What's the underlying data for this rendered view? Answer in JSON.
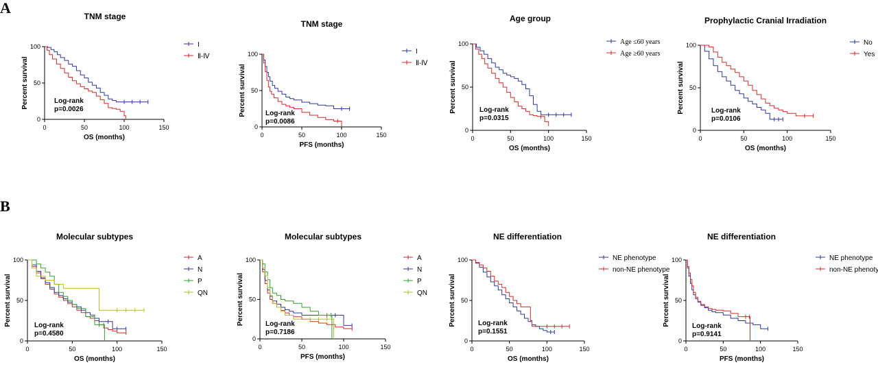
{
  "panel_labels": [
    "A",
    "B"
  ],
  "chart_data": [
    {
      "type": "line",
      "title": "TNM stage",
      "xlabel": "OS (months)",
      "ylabel": "Percent survival",
      "xlim": [
        0,
        150
      ],
      "ylim": [
        0,
        100
      ],
      "xticks": [
        0,
        50,
        100,
        150
      ],
      "yticks": [
        0,
        50,
        100
      ],
      "annotation": [
        "Log-rank",
        "p=0.0026"
      ],
      "legend_position": "right",
      "series": [
        {
          "name": "I",
          "color": "#2b35a0",
          "x": [
            0,
            4,
            8,
            12,
            16,
            20,
            25,
            30,
            35,
            40,
            45,
            50,
            55,
            60,
            65,
            70,
            75,
            80,
            85,
            90,
            95,
            100,
            110,
            120,
            130
          ],
          "y": [
            100,
            99,
            96,
            93,
            89,
            85,
            81,
            76,
            73,
            67,
            61,
            57,
            51,
            47,
            43,
            37,
            33,
            28,
            26,
            24,
            24,
            24,
            24,
            24,
            24
          ]
        },
        {
          "name": "Ⅱ-Ⅳ",
          "color": "#d62728",
          "x": [
            0,
            3,
            6,
            10,
            15,
            20,
            25,
            30,
            35,
            40,
            45,
            50,
            55,
            60,
            65,
            70,
            75,
            80,
            85,
            90,
            95,
            100,
            102
          ],
          "y": [
            100,
            95,
            89,
            83,
            76,
            70,
            64,
            58,
            53,
            49,
            45,
            42,
            39,
            37,
            32,
            27,
            22,
            16,
            15,
            14,
            11,
            5,
            0
          ]
        }
      ]
    },
    {
      "type": "line",
      "title": "TNM stage",
      "xlabel": "PFS (months)",
      "ylabel": "Percent survival",
      "xlim": [
        0,
        150
      ],
      "ylim": [
        0,
        100
      ],
      "xticks": [
        0,
        50,
        100,
        150
      ],
      "yticks": [
        0,
        50,
        100
      ],
      "annotation": [
        "Log-rank",
        "p=0.0086"
      ],
      "legend_position": "right",
      "series": [
        {
          "name": "I",
          "color": "#2b35a0",
          "x": [
            0,
            2,
            4,
            6,
            8,
            10,
            13,
            16,
            20,
            25,
            30,
            35,
            40,
            50,
            60,
            70,
            80,
            90,
            100,
            110
          ],
          "y": [
            100,
            92,
            83,
            75,
            69,
            63,
            57,
            53,
            49,
            45,
            41,
            39,
            37,
            34,
            32,
            30,
            29,
            25,
            25,
            25
          ]
        },
        {
          "name": "Ⅱ-Ⅳ",
          "color": "#d62728",
          "x": [
            0,
            2,
            4,
            6,
            8,
            10,
            12,
            15,
            20,
            25,
            30,
            35,
            40,
            50,
            60,
            70,
            80,
            90,
            95,
            100
          ],
          "y": [
            100,
            88,
            76,
            64,
            55,
            49,
            45,
            40,
            35,
            31,
            29,
            27,
            25,
            20,
            16,
            13,
            10,
            8,
            8,
            0
          ]
        }
      ]
    },
    {
      "type": "line",
      "title": "Age group",
      "xlabel": "OS (months)",
      "ylabel": "Percent survival",
      "xlim": [
        0,
        150
      ],
      "ylim": [
        0,
        100
      ],
      "xticks": [
        0,
        50,
        100,
        150
      ],
      "yticks": [
        0,
        50,
        100
      ],
      "annotation": [
        "Log-rank",
        "p=0.0315"
      ],
      "legend_position": "right",
      "series": [
        {
          "name": "Age ≤60 years",
          "color": "#2b35a0",
          "x": [
            0,
            5,
            10,
            15,
            20,
            25,
            30,
            35,
            40,
            45,
            50,
            55,
            60,
            65,
            70,
            75,
            80,
            85,
            90,
            100,
            110,
            120,
            130
          ],
          "y": [
            100,
            96,
            92,
            88,
            83,
            78,
            73,
            70,
            66,
            64,
            62,
            60,
            57,
            53,
            48,
            40,
            30,
            22,
            18,
            18,
            18,
            18,
            18
          ]
        },
        {
          "name": "Age ≥60 years",
          "color": "#d62728",
          "x": [
            0,
            4,
            8,
            12,
            16,
            20,
            25,
            30,
            35,
            40,
            45,
            50,
            55,
            60,
            65,
            70,
            75,
            80,
            85,
            90,
            95,
            100
          ],
          "y": [
            100,
            94,
            88,
            83,
            77,
            72,
            66,
            60,
            55,
            50,
            44,
            38,
            33,
            28,
            25,
            22,
            18,
            17,
            16,
            16,
            10,
            5
          ]
        }
      ]
    },
    {
      "type": "line",
      "title": "Prophylactic Cranial Irradiation",
      "xlabel": "OS (months)",
      "ylabel": "Percent survival",
      "xlim": [
        0,
        150
      ],
      "ylim": [
        0,
        100
      ],
      "xticks": [
        0,
        50,
        100,
        150
      ],
      "yticks": [
        0,
        50,
        100
      ],
      "annotation": [
        "Log-rank",
        "p=0.0106"
      ],
      "legend_position": "right",
      "series": [
        {
          "name": "No",
          "color": "#2b35a0",
          "x": [
            0,
            5,
            10,
            15,
            20,
            25,
            30,
            35,
            40,
            45,
            50,
            55,
            60,
            65,
            70,
            75,
            80,
            85,
            90,
            95
          ],
          "y": [
            100,
            93,
            84,
            76,
            69,
            63,
            58,
            53,
            47,
            43,
            38,
            34,
            31,
            27,
            24,
            20,
            13,
            13,
            13,
            13
          ]
        },
        {
          "name": "Yes",
          "color": "#d62728",
          "x": [
            0,
            5,
            10,
            15,
            20,
            25,
            30,
            35,
            40,
            45,
            50,
            55,
            60,
            65,
            70,
            75,
            80,
            85,
            90,
            95,
            100,
            110,
            120,
            130
          ],
          "y": [
            100,
            100,
            98,
            92,
            86,
            80,
            76,
            72,
            68,
            63,
            58,
            53,
            47,
            42,
            37,
            32,
            29,
            26,
            24,
            22,
            20,
            17,
            17,
            17
          ]
        }
      ]
    },
    {
      "type": "line",
      "title": "Molecular subtypes",
      "xlabel": "OS (months)",
      "ylabel": "Percent survival",
      "xlim": [
        0,
        150
      ],
      "ylim": [
        0,
        100
      ],
      "xticks": [
        0,
        50,
        100,
        150
      ],
      "yticks": [
        0,
        50,
        100
      ],
      "annotation": [
        "Log-rank",
        "p=0.4580"
      ],
      "legend_position": "right",
      "series": [
        {
          "name": "A",
          "color": "#d62728",
          "x": [
            0,
            5,
            10,
            15,
            20,
            25,
            30,
            35,
            40,
            45,
            50,
            55,
            60,
            65,
            70,
            75,
            80,
            85,
            90,
            95,
            100,
            110
          ],
          "y": [
            100,
            92,
            84,
            77,
            70,
            64,
            58,
            54,
            50,
            46,
            42,
            38,
            35,
            30,
            28,
            25,
            20,
            16,
            14,
            12,
            10,
            10
          ]
        },
        {
          "name": "N",
          "color": "#2b35a0",
          "x": [
            0,
            5,
            10,
            15,
            20,
            25,
            30,
            35,
            40,
            45,
            50,
            55,
            60,
            65,
            70,
            75,
            80,
            85,
            90,
            95,
            100,
            110
          ],
          "y": [
            100,
            94,
            86,
            78,
            72,
            66,
            60,
            56,
            52,
            48,
            45,
            42,
            38,
            35,
            32,
            28,
            24,
            24,
            24,
            15,
            15,
            15
          ]
        },
        {
          "name": "P",
          "color": "#2ca02c",
          "x": [
            0,
            5,
            10,
            15,
            20,
            25,
            30,
            35,
            40,
            45,
            50,
            55,
            60,
            65,
            70,
            75,
            80,
            85,
            86
          ],
          "y": [
            100,
            100,
            95,
            90,
            85,
            80,
            70,
            60,
            55,
            50,
            45,
            40,
            40,
            30,
            30,
            20,
            20,
            20,
            0
          ]
        },
        {
          "name": "QN",
          "color": "#b5bd1f",
          "x": [
            0,
            5,
            10,
            20,
            30,
            40,
            50,
            60,
            70,
            80,
            90,
            100,
            110,
            120,
            130
          ],
          "y": [
            100,
            90,
            80,
            75,
            70,
            65,
            65,
            65,
            65,
            38,
            38,
            38,
            38,
            38,
            38
          ]
        }
      ]
    },
    {
      "type": "line",
      "title": "Molecular subtypes",
      "xlabel": "PFS (months)",
      "ylabel": "Percent survival",
      "xlim": [
        0,
        150
      ],
      "ylim": [
        0,
        100
      ],
      "xticks": [
        0,
        50,
        100,
        150
      ],
      "yticks": [
        0,
        50,
        100
      ],
      "annotation": [
        "Log-rank",
        "p=0.7186"
      ],
      "legend_position": "right",
      "series": [
        {
          "name": "A",
          "color": "#d62728",
          "x": [
            0,
            3,
            6,
            9,
            12,
            15,
            20,
            25,
            30,
            35,
            40,
            50,
            60,
            70,
            80,
            90,
            100,
            110
          ],
          "y": [
            100,
            85,
            70,
            58,
            50,
            45,
            40,
            36,
            33,
            30,
            28,
            25,
            22,
            20,
            18,
            15,
            13,
            13
          ]
        },
        {
          "name": "N",
          "color": "#2b35a0",
          "x": [
            0,
            3,
            6,
            9,
            12,
            15,
            20,
            25,
            30,
            35,
            40,
            50,
            60,
            70,
            80,
            90,
            100,
            110
          ],
          "y": [
            100,
            88,
            74,
            62,
            54,
            48,
            44,
            40,
            37,
            35,
            33,
            30,
            30,
            30,
            30,
            30,
            17,
            17
          ]
        },
        {
          "name": "P",
          "color": "#2ca02c",
          "x": [
            0,
            3,
            6,
            9,
            12,
            15,
            20,
            25,
            30,
            40,
            50,
            60,
            70,
            80,
            85,
            86
          ],
          "y": [
            100,
            95,
            85,
            75,
            65,
            58,
            55,
            50,
            48,
            45,
            40,
            35,
            30,
            30,
            30,
            0
          ]
        },
        {
          "name": "QN",
          "color": "#b5bd1f",
          "x": [
            0,
            3,
            6,
            9,
            12,
            15,
            20,
            25,
            30,
            40,
            50,
            60,
            70,
            80,
            88
          ],
          "y": [
            100,
            90,
            80,
            65,
            55,
            45,
            40,
            35,
            30,
            25,
            25,
            25,
            25,
            25,
            0
          ]
        }
      ]
    },
    {
      "type": "line",
      "title": "NE differentiation",
      "xlabel": "OS (months)",
      "ylabel": "Percent survival",
      "xlim": [
        0,
        150
      ],
      "ylim": [
        0,
        100
      ],
      "xticks": [
        0,
        50,
        100,
        150
      ],
      "yticks": [
        0,
        50,
        100
      ],
      "annotation": [
        "Log-rank",
        "p=0.1551"
      ],
      "legend_position": "right",
      "series": [
        {
          "name": "NE phenotype",
          "color": "#2b35a0",
          "x": [
            0,
            5,
            10,
            15,
            20,
            25,
            30,
            35,
            40,
            45,
            50,
            55,
            60,
            65,
            70,
            75,
            80,
            85,
            90,
            95,
            100,
            105,
            110
          ],
          "y": [
            100,
            96,
            91,
            85,
            79,
            73,
            68,
            63,
            57,
            52,
            47,
            42,
            37,
            33,
            28,
            24,
            20,
            18,
            15,
            13,
            11,
            11,
            11
          ]
        },
        {
          "name": "non-NE phenotype",
          "color": "#d62728",
          "x": [
            0,
            5,
            10,
            15,
            20,
            25,
            30,
            35,
            40,
            45,
            50,
            55,
            60,
            65,
            70,
            75,
            78,
            80,
            90,
            100,
            110,
            120,
            130
          ],
          "y": [
            100,
            97,
            94,
            90,
            86,
            80,
            74,
            70,
            66,
            60,
            55,
            50,
            46,
            42,
            42,
            42,
            25,
            18,
            18,
            18,
            18,
            18,
            18
          ]
        }
      ]
    },
    {
      "type": "line",
      "title": "NE differentiation",
      "xlabel": "PFS (months)",
      "ylabel": "Percent survival",
      "xlim": [
        0,
        150
      ],
      "ylim": [
        0,
        100
      ],
      "xticks": [
        0,
        50,
        100,
        150
      ],
      "yticks": [
        0,
        50,
        100
      ],
      "annotation": [
        "Log-rank",
        "p=0.9141"
      ],
      "legend_position": "right",
      "series": [
        {
          "name": "NE phenotype",
          "color": "#2b35a0",
          "x": [
            0,
            2,
            4,
            6,
            8,
            10,
            13,
            16,
            20,
            25,
            30,
            35,
            40,
            50,
            60,
            70,
            80,
            90,
            100,
            110
          ],
          "y": [
            100,
            90,
            80,
            71,
            63,
            57,
            52,
            48,
            44,
            41,
            38,
            36,
            35,
            32,
            28,
            25,
            22,
            20,
            15,
            15
          ]
        },
        {
          "name": "non-NE phenotype",
          "color": "#d62728",
          "x": [
            0,
            2,
            4,
            6,
            8,
            10,
            13,
            16,
            20,
            25,
            30,
            35,
            40,
            50,
            60,
            70,
            80,
            85,
            86
          ],
          "y": [
            100,
            92,
            84,
            76,
            68,
            60,
            54,
            49,
            45,
            42,
            40,
            39,
            38,
            37,
            34,
            30,
            30,
            30,
            0
          ]
        }
      ]
    }
  ]
}
